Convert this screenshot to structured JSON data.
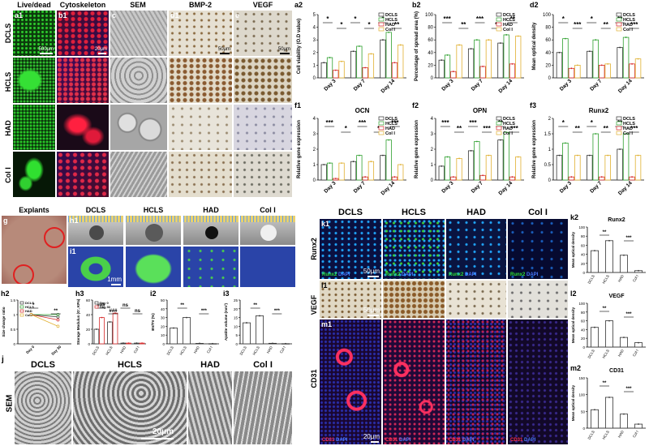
{
  "top_grid": {
    "columns": [
      {
        "id": "a1",
        "label": "a1",
        "title": "Live/dead",
        "scale": "500μm"
      },
      {
        "id": "b1",
        "label": "b1",
        "title": "Cytoskeleton",
        "scale": "20μm"
      },
      {
        "id": "c",
        "label": "c",
        "title": "SEM",
        "scale": "20μm"
      },
      {
        "id": "d1",
        "label": "d1",
        "title": "BMP-2",
        "scale": "50μm"
      },
      {
        "id": "e",
        "label": "e",
        "title": "VEGF",
        "scale": "50μm"
      }
    ],
    "rows": [
      "DCLS",
      "HCLS",
      "HAD",
      "Col I"
    ],
    "colors": {
      "livedead": "#0d4d0d",
      "cyto": "#3a0d2a",
      "sem": "#b8b8b8",
      "ihc": "#d8d0c0"
    }
  },
  "bar_legend": [
    "DCLS",
    "HCLS",
    "HAD",
    "Col I"
  ],
  "series_colors": {
    "DCLS": "#333333",
    "HCLS": "#2ea02e",
    "HAD": "#d62728",
    "Col I": "#e0b030"
  },
  "chart_data": [
    {
      "id": "a2",
      "label": "a2",
      "type": "bar",
      "title": "",
      "ylabel": "Cell viability (O.D value)",
      "categories": [
        "Day 3",
        "Day 7",
        "Day 14"
      ],
      "ylim": [
        0,
        5
      ],
      "yticks": [
        0,
        1,
        2,
        3,
        4,
        5
      ],
      "series": [
        {
          "name": "DCLS",
          "values": [
            1.2,
            2.1,
            3.0
          ]
        },
        {
          "name": "HCLS",
          "values": [
            1.6,
            2.5,
            3.6
          ]
        },
        {
          "name": "HAD",
          "values": [
            0.6,
            0.8,
            1.2
          ]
        },
        {
          "name": "Col I",
          "values": [
            1.3,
            1.9,
            2.6
          ]
        }
      ],
      "annotations": [
        "*",
        "*",
        "*",
        "*",
        "*",
        "**"
      ]
    },
    {
      "id": "b2",
      "label": "b2",
      "type": "bar",
      "title": "",
      "ylabel": "Percentage of spread area (%)",
      "categories": [
        "Day 3",
        "Day 7",
        "Day 14"
      ],
      "ylim": [
        0,
        100
      ],
      "yticks": [
        0,
        20,
        40,
        60,
        80,
        100
      ],
      "series": [
        {
          "name": "DCLS",
          "values": [
            28,
            46,
            55
          ]
        },
        {
          "name": "HCLS",
          "values": [
            36,
            60,
            68
          ]
        },
        {
          "name": "HAD",
          "values": [
            10,
            18,
            22
          ]
        },
        {
          "name": "Col I",
          "values": [
            52,
            60,
            66
          ]
        }
      ],
      "annotations": [
        "***",
        "**",
        "***",
        "*",
        "**"
      ]
    },
    {
      "id": "d2",
      "label": "d2",
      "type": "bar",
      "title": "",
      "ylabel": "Mean optical density",
      "categories": [
        "Day 3",
        "Day 7",
        "Day 14"
      ],
      "ylim": [
        0,
        100
      ],
      "yticks": [
        0,
        20,
        40,
        60,
        80,
        100
      ],
      "series": [
        {
          "name": "DCLS",
          "values": [
            40,
            42,
            48
          ]
        },
        {
          "name": "HCLS",
          "values": [
            62,
            60,
            64
          ]
        },
        {
          "name": "HAD",
          "values": [
            15,
            20,
            22
          ]
        },
        {
          "name": "Col I",
          "values": [
            20,
            22,
            30
          ]
        }
      ],
      "annotations": [
        "*",
        "***",
        "*",
        "**",
        "**",
        "***"
      ]
    },
    {
      "id": "f1",
      "label": "f1",
      "type": "bar",
      "title": "OCN",
      "ylabel": "Relative gene expression",
      "categories": [
        "Day 3",
        "Day 7",
        "Day 14"
      ],
      "ylim": [
        0,
        4
      ],
      "yticks": [
        0,
        1,
        2,
        3,
        4
      ],
      "series": [
        {
          "name": "DCLS",
          "values": [
            1.0,
            1.2,
            1.6
          ]
        },
        {
          "name": "HCLS",
          "values": [
            1.1,
            1.6,
            2.6
          ]
        },
        {
          "name": "HAD",
          "values": [
            0.1,
            0.2,
            0.2
          ]
        },
        {
          "name": "Col I",
          "values": [
            1.1,
            1.2,
            1.0
          ]
        }
      ],
      "annotations": [
        "***",
        "*",
        "***",
        "*",
        "***"
      ]
    },
    {
      "id": "f2",
      "label": "f2",
      "type": "bar",
      "title": "OPN",
      "ylabel": "Relative gene expression",
      "categories": [
        "Day 3",
        "Day 7",
        "Day 14"
      ],
      "ylim": [
        0,
        4
      ],
      "yticks": [
        0,
        1,
        2,
        3,
        4
      ],
      "series": [
        {
          "name": "DCLS",
          "values": [
            0.9,
            1.9,
            2.6
          ]
        },
        {
          "name": "HCLS",
          "values": [
            1.5,
            2.5,
            3.1
          ]
        },
        {
          "name": "HAD",
          "values": [
            0.2,
            0.3,
            0.2
          ]
        },
        {
          "name": "Col I",
          "values": [
            1.4,
            1.6,
            1.5
          ]
        }
      ],
      "annotations": [
        "***",
        "**",
        "***",
        "***",
        "**",
        "***"
      ]
    },
    {
      "id": "f3",
      "label": "f3",
      "type": "bar",
      "title": "Runx2",
      "ylabel": "Relative gene expression",
      "categories": [
        "Day 3",
        "Day 7",
        "Day 14"
      ],
      "ylim": [
        0,
        2.0
      ],
      "yticks": [
        0,
        0.5,
        1.0,
        1.5,
        2.0
      ],
      "series": [
        {
          "name": "DCLS",
          "values": [
            0.8,
            0.8,
            1.0
          ]
        },
        {
          "name": "HCLS",
          "values": [
            1.2,
            1.5,
            1.5
          ]
        },
        {
          "name": "HAD",
          "values": [
            0.1,
            0.1,
            0.1
          ]
        },
        {
          "name": "Col I",
          "values": [
            0.8,
            0.8,
            0.8
          ]
        }
      ],
      "annotations": [
        "*",
        "**",
        "*",
        "**",
        "**",
        "***"
      ]
    },
    {
      "id": "h2",
      "label": "h2",
      "type": "line",
      "title": "",
      "ylabel": "Size change ratio",
      "categories": [
        "Day 0",
        "Day 30"
      ],
      "ylim": [
        0,
        1.5
      ],
      "yticks": [
        0,
        0.5,
        1.0,
        1.5
      ],
      "series": [
        {
          "name": "DCLS",
          "values": [
            1.0,
            0.92
          ]
        },
        {
          "name": "HCLS",
          "values": [
            1.0,
            1.0
          ]
        },
        {
          "name": "HAD",
          "values": [
            1.0,
            0.82
          ]
        },
        {
          "name": "Col I",
          "values": [
            1.0,
            0.6
          ]
        }
      ],
      "annotations": [
        "*",
        "**"
      ]
    },
    {
      "id": "h3",
      "label": "h3",
      "type": "bar",
      "title": "",
      "ylabel": "Storage Modulus (G', KPa)",
      "categories": [
        "DCLS",
        "HCLS",
        "HAD",
        "Col I"
      ],
      "ylim": [
        0,
        60
      ],
      "yticks": [
        0,
        20,
        40,
        60
      ],
      "series": [
        {
          "name": "Day 0",
          "values": [
            20,
            30,
            1,
            1
          ]
        },
        {
          "name": "Day 30",
          "values": [
            36,
            42,
            1,
            1
          ]
        }
      ],
      "annotations": [
        "###",
        "###",
        "ns",
        "ns"
      ]
    },
    {
      "id": "i2",
      "label": "i2",
      "type": "bar",
      "title": "",
      "ylabel": "BV/TV (%)",
      "categories": [
        "DCLS",
        "HCLS",
        "HAD",
        "Col I"
      ],
      "ylim": [
        0,
        50
      ],
      "yticks": [
        0,
        10,
        20,
        30,
        40,
        50
      ],
      "series": [
        {
          "name": "BV/TV",
          "values": [
            18,
            30,
            0.5,
            0.2
          ]
        }
      ],
      "annotations": [
        "**",
        "***"
      ]
    },
    {
      "id": "i3",
      "label": "i3",
      "type": "bar",
      "title": "",
      "ylabel": "Apatite volume (mm³)",
      "categories": [
        "DCLS",
        "HCLS",
        "HAD",
        "Col I"
      ],
      "ylim": [
        0,
        25
      ],
      "yticks": [
        0,
        5,
        10,
        15,
        20,
        25
      ],
      "series": [
        {
          "name": "Apatite volume",
          "values": [
            12,
            16,
            0.3,
            0.1
          ]
        }
      ],
      "annotations": [
        "**",
        "***"
      ]
    },
    {
      "id": "k2",
      "label": "k2",
      "type": "bar",
      "title": "Runx2",
      "ylabel": "Mean optical density",
      "categories": [
        "DCLS",
        "HCLS",
        "HAD",
        "Col I"
      ],
      "ylim": [
        0,
        100
      ],
      "yticks": [
        0,
        20,
        40,
        60,
        80,
        100
      ],
      "series": [
        {
          "name": "Runx2",
          "values": [
            48,
            70,
            38,
            4
          ]
        }
      ],
      "annotations": [
        "**",
        "***"
      ]
    },
    {
      "id": "l2",
      "label": "l2",
      "type": "bar",
      "title": "VEGF",
      "ylabel": "Mean optical density",
      "categories": [
        "DCLS",
        "HCLS",
        "HAD",
        "Col I"
      ],
      "ylim": [
        0,
        100
      ],
      "yticks": [
        0,
        20,
        40,
        60,
        80,
        100
      ],
      "series": [
        {
          "name": "VEGF",
          "values": [
            45,
            60,
            22,
            10
          ]
        }
      ],
      "annotations": [
        "**",
        "***"
      ]
    },
    {
      "id": "m2",
      "label": "m2",
      "type": "bar",
      "title": "CD31",
      "ylabel": "Mean optical density",
      "categories": [
        "DCLS",
        "HCLS",
        "HAD",
        "Col I"
      ],
      "ylim": [
        0,
        150
      ],
      "yticks": [
        0,
        50,
        100,
        150
      ],
      "series": [
        {
          "name": "CD31",
          "values": [
            55,
            92,
            42,
            12
          ]
        }
      ],
      "annotations": [
        "**",
        "***"
      ]
    }
  ],
  "explants": {
    "g": {
      "label": "g",
      "title": "Explants"
    },
    "h1": {
      "label": "h1"
    },
    "i1": {
      "label": "i1",
      "scale": "1mm"
    },
    "columns": [
      "DCLS",
      "HCLS",
      "HAD",
      "Col I"
    ]
  },
  "sem_bottom": {
    "label": "j",
    "row": "SEM",
    "columns": [
      "DCLS",
      "HCLS",
      "HAD",
      "Col I"
    ],
    "scale": "20μm"
  },
  "ihc_grid": {
    "columns": [
      "DCLS",
      "HCLS",
      "HAD",
      "Col I"
    ],
    "rows": [
      {
        "id": "k1",
        "label": "k1",
        "name": "Runx2",
        "stain": "Runx2",
        "dapi": "DAPI",
        "scale": "50μm"
      },
      {
        "id": "l1",
        "label": "l1",
        "name": "VEGF",
        "scale": "50μm"
      },
      {
        "id": "m1",
        "label": "m1",
        "name": "CD31",
        "stain": "CD31",
        "dapi": "DAPI",
        "scale": "20μm"
      }
    ]
  }
}
